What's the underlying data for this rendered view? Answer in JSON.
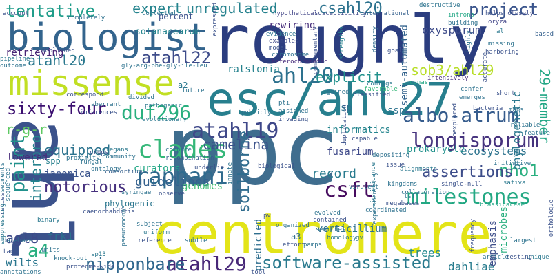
{
  "words": {
    "roughly": "roughly",
    "ppc": "ppc",
    "ahl": "ahl",
    "centromere": "centromere",
    "esc_ahl27": "esc/ahl27",
    "biologist": "biologist",
    "missense": "missense",
    "software_assisted": "software-assisted",
    "milestones": "milestones",
    "atahl29": "atahl29",
    "albo_atrum": "albo-atrum",
    "longisporum": "longisporum",
    "raphani": "raphani",
    "duf296": "duf296",
    "csft": "csft",
    "clades": "clades",
    "ahl20": "ahl20",
    "atahl19": "atahl19",
    "sixty_four": "sixty-four",
    "paint": "paint",
    "nipponbare": "nipponbare",
    "a4": "a4",
    "atahl22": "atahl22",
    "atahl20": "atahl20",
    "expert": "expert",
    "unregulated": "unregulated",
    "csahl20": "csahl20",
    "project": "project",
    "tentative": "tentative",
    "sob3_ahl29": "sob3/ahl29",
    "twentynine_member": "29-member",
    "nho1": "nho1",
    "assertions": "assertions",
    "notorious": "notorious",
    "soilborne": "soilborne",
    "interpro": "interpro",
    "camelina": "camelina",
    "equipped": "equipped",
    "explicit": "explicit",
    "informatics": "informatics",
    "fusarium": "fusarium",
    "record": "record",
    "guidelines": "guidelines",
    "r_g_r": "r-g-r",
    "frk1": "frk1",
    "agl8": "agl8",
    "wilts": "wilts",
    "trees": "trees",
    "dahliae": "dahliae",
    "ecosystems": "ecosystems",
    "phylogenetic": "phylogenetic",
    "oxysporum": "oxysporum",
    "rewiring": "rewiring",
    "ralstonia": "ralstonia",
    "retrieving": "retrieving",
    "japonica": "japonica",
    "lowered": "lowered",
    "genomes": "genomes",
    "curators": "curators",
    "verticillium": "verticillium",
    "prokaryote": "prokaryote",
    "predicted": "predicted",
    "emphasis": "emphasis",
    "semi_automated": "semi-automated",
    "solanacearum": "solanacearum",
    "percent": "percent",
    "sp": "sp",
    "ssp": "ssp",
    "spp": "spp",
    "a2": "a2",
    "a3": "a3",
    "microbes": "microbes",
    "phylogenic": "phylogenic",
    "gly_arg": "gly-arg-phe-gly-ile-leu",
    "heterochromatic": "heterochromatic",
    "expressed": "expressed",
    "evidence": "evidence",
    "chromosome": "chromosome",
    "complementary": "complementary",
    "strengths": "strengths",
    "density": "density",
    "hypothetical": "hypothetical",
    "susceptibility": "susceptibility",
    "international": "international",
    "destructive": "destructive",
    "introns": "introns",
    "oryza": "oryza",
    "helps": "helps",
    "closely": "closely",
    "based": "based",
    "missing": "missing",
    "harboring": "harboring",
    "highly": "highly",
    "accurate": "accurate",
    "confer": "confer",
    "emerges": "emerges",
    "short": "short",
    "intensively": "intensively",
    "cdnas": "cdnas",
    "contigs": "contigs",
    "favorable": "favorable",
    "duplication": "duplication",
    "gained": "gained",
    "pti": "pti",
    "assigned": "assigned",
    "invading": "invading",
    "publicly": "publicly",
    "evolutionary": "evolutionary",
    "compare": "compare",
    "recombination": "recombination",
    "fungal": "fungal",
    "ontology": "ontology",
    "crops": "crops",
    "elegans": "elegans",
    "community": "community",
    "consortium": "consortium",
    "underlie": "underlie",
    "innate": "innate",
    "depositing": "depositing",
    "issue": "issue",
    "kingdoms": "kingdoms",
    "single_null": "single-null",
    "sativa": "sativa",
    "collaboration": "collaboration",
    "megabases": "megabases",
    "coordinated": "coordinated",
    "brassicaceae": "brassicaceae",
    "orthologue": "orthologue",
    "largest": "largest",
    "unique": "unique",
    "testing": "testing",
    "initiative": "initiative",
    "frequency": "frequency",
    "evolved": "evolved",
    "organized": "organized",
    "contained": "contained",
    "homology": "homology",
    "pamps": "pamps",
    "effort": "effort",
    "searches": "searches",
    "subtle": "subtle",
    "reference": "reference",
    "uniform": "uniform",
    "subject": "subject",
    "caenorhabditis": "caenorhabditis",
    "pseudomonas": "pseudomonas",
    "syringae": "syringae",
    "binary": "binary",
    "database": "database",
    "tag": "tag",
    "units": "units",
    "knock_out": "knock-out",
    "proteome_wide": "proteome-wide",
    "annotations": "annotations",
    "tool": "tool",
    "sequenced": "sequenced",
    "segments": "segments",
    "relies": "relies",
    "suppressing": "suppressing",
    "proximity": "proximity",
    "correspond": "correspond",
    "aberrant": "aberrant",
    "divided": "divided",
    "inferences": "inferences",
    "pathogenic": "pathogenic",
    "future": "future",
    "account": "account",
    "completely": "completely",
    "collected": "collected",
    "abolished": "abolished",
    "pipeline": "pipeline",
    "outcome": "outcome",
    "al": "al",
    "classified": "classified",
    "building": "building",
    "virulent": "virulent",
    "capable": "capable",
    "significance": "significance",
    "experimentally": "experimentally",
    "bacteria": "bacteria",
    "maps": "maps",
    "reliable": "reliable",
    "unexplored": "unexplored",
    "alignments": "alignments",
    "tsf": "tsf",
    "biological": "biological",
    "gv": "gv",
    "pv": "pv",
    "observe": "observe",
    "sp13": "sp13",
    "feature": "feature",
    "article": "article",
    "model": "model",
    "goal": "goal",
    "examples": "examples"
  }
}
